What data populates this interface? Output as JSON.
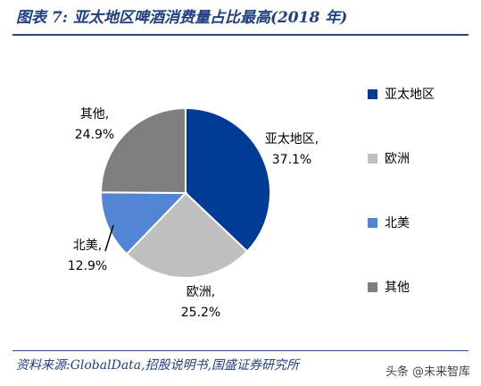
{
  "header": {
    "title": "图表 7:  亚太地区啤酒消费量占比最高(2018 年)"
  },
  "footer": {
    "source": "资料来源:GlobalData,招股说明书,国盛证券研究所",
    "watermark": "头条 @未来智库"
  },
  "chart_data": {
    "type": "pie",
    "title": "",
    "categories": [
      "亚太地区",
      "欧洲",
      "北美",
      "其他"
    ],
    "values": [
      37.1,
      25.2,
      12.9,
      24.9
    ],
    "value_labels": [
      "37.1%",
      "25.2%",
      "12.9%",
      "24.9%"
    ],
    "colors": [
      "#003b95",
      "#bfbfbf",
      "#5285d3",
      "#7f7f7f"
    ],
    "legend": {
      "position": "right",
      "entries": [
        "亚太地区",
        "欧洲",
        "北美",
        "其他"
      ]
    }
  }
}
